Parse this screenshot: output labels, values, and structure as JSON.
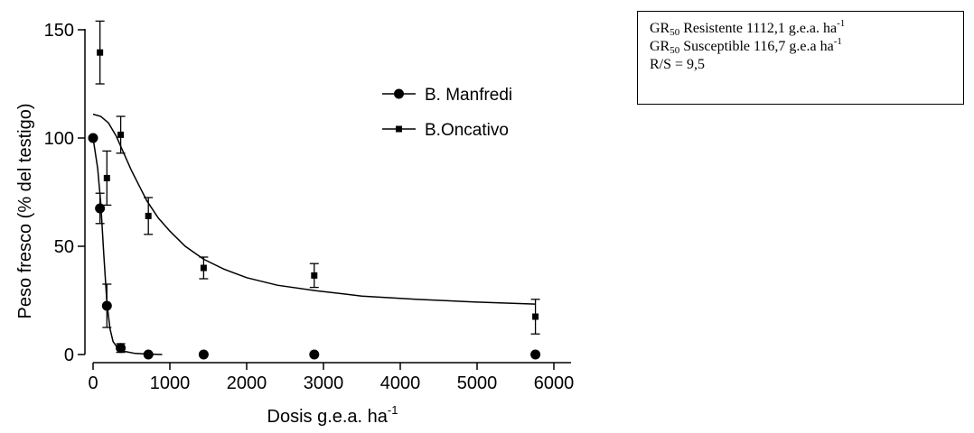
{
  "chart_data": {
    "type": "scatter",
    "title": "",
    "xlabel": "Dosis g.e.a. ha",
    "xlabel_superscript": "-1",
    "ylabel": "Peso fresco (% del testigo)",
    "xlim": [
      0,
      6000
    ],
    "ylim": [
      0,
      150
    ],
    "x_ticks": [
      0,
      1000,
      2000,
      3000,
      4000,
      5000,
      6000
    ],
    "y_ticks": [
      0,
      50,
      100,
      150
    ],
    "grid": false,
    "legend_position": "top-right",
    "series": [
      {
        "name": "B. Manfredi",
        "marker": "circle",
        "color": "#000000",
        "x": [
          0,
          90,
          180,
          360,
          720,
          1440,
          2880,
          5760
        ],
        "y": [
          100,
          67.5,
          22.5,
          3,
          0,
          0,
          0,
          0
        ],
        "error": [
          0,
          7,
          10,
          2,
          0,
          0,
          0,
          0
        ],
        "fit": [
          [
            0,
            100
          ],
          [
            60,
            86
          ],
          [
            100,
            70
          ],
          [
            140,
            46
          ],
          [
            180,
            24
          ],
          [
            220,
            12
          ],
          [
            260,
            6
          ],
          [
            320,
            3
          ],
          [
            400,
            1.5
          ],
          [
            550,
            0.5
          ],
          [
            720,
            0.2
          ],
          [
            900,
            0
          ]
        ]
      },
      {
        "name": "B.Oncativo",
        "marker": "square",
        "color": "#000000",
        "x": [
          90,
          180,
          360,
          720,
          1440,
          2880,
          5760
        ],
        "y": [
          139.5,
          81.5,
          101.5,
          64,
          40,
          36.5,
          17.5
        ],
        "error": [
          14.5,
          12.5,
          8.5,
          8.5,
          5,
          5.5,
          8
        ],
        "fit": [
          [
            0,
            111
          ],
          [
            100,
            110
          ],
          [
            200,
            107
          ],
          [
            300,
            101
          ],
          [
            400,
            93
          ],
          [
            500,
            85
          ],
          [
            600,
            78
          ],
          [
            700,
            71
          ],
          [
            850,
            63
          ],
          [
            1000,
            57
          ],
          [
            1200,
            50
          ],
          [
            1440,
            44
          ],
          [
            1700,
            39.5
          ],
          [
            2000,
            35.5
          ],
          [
            2400,
            32
          ],
          [
            2900,
            29.5
          ],
          [
            3500,
            27
          ],
          [
            4200,
            25.5
          ],
          [
            5000,
            24.2
          ],
          [
            5760,
            23.3
          ]
        ]
      }
    ]
  },
  "stats_box": {
    "line1_pre": "GR",
    "line1_sub": "50",
    "line1_post": " Resistente 1112,1 g.e.a. ha",
    "line1_sup": "-1",
    "line2_pre": "GR",
    "line2_sub": "50",
    "line2_post": " Susceptible 116,7 g.e.a ha",
    "line2_sup": "-1",
    "line3": "R/S = 9,5"
  }
}
